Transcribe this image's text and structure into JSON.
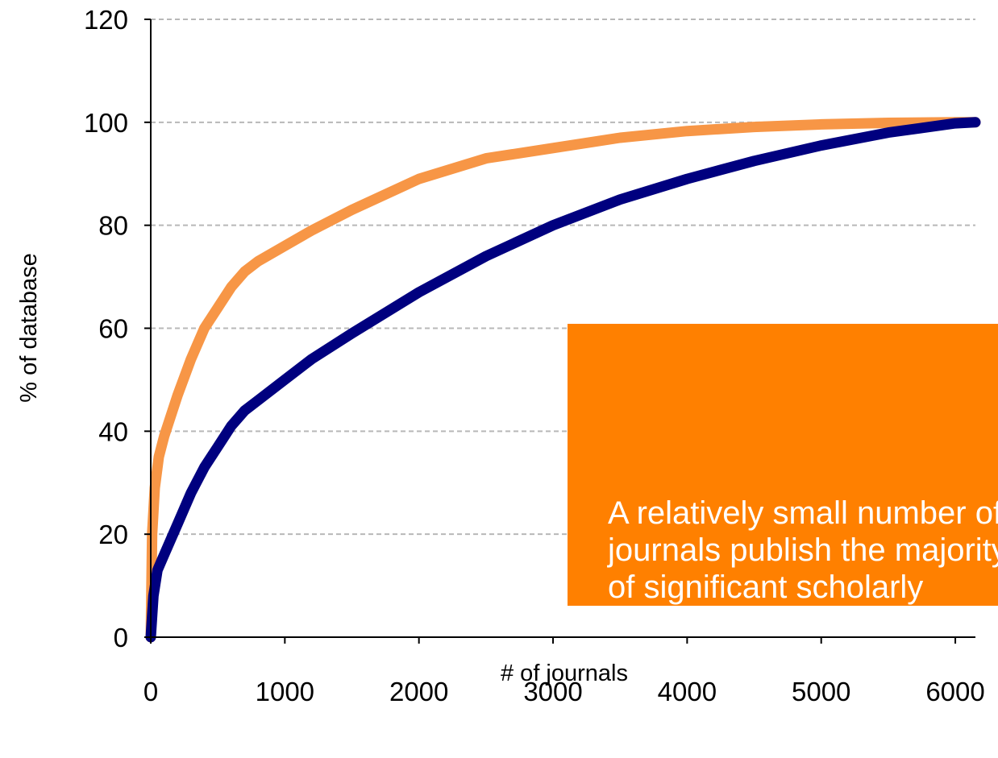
{
  "chart_data": {
    "type": "line",
    "title": "",
    "xlabel": "# of journals",
    "ylabel": "% of database",
    "xlim": [
      0,
      6150
    ],
    "ylim": [
      0,
      120
    ],
    "x_ticks": [
      "0",
      "1000",
      "2000",
      "3000",
      "4000",
      "5000",
      "6000"
    ],
    "y_ticks": [
      "0",
      "20",
      "40",
      "60",
      "80",
      "100",
      "120"
    ],
    "grid": "horizontal dashed",
    "legend": "none",
    "series": [
      {
        "color": "#f79646",
        "x": [
          0,
          10,
          30,
          60,
          100,
          200,
          300,
          400,
          500,
          600,
          700,
          800,
          1000,
          1200,
          1500,
          2000,
          2500,
          3000,
          3500,
          4000,
          4500,
          5000,
          5500,
          6000,
          6150
        ],
        "y": [
          0,
          20,
          29,
          35,
          39,
          47,
          54,
          60,
          64,
          68,
          71,
          73,
          76,
          79,
          83,
          89,
          93,
          95,
          97,
          98.3,
          99.1,
          99.6,
          99.9,
          100,
          100
        ]
      },
      {
        "color": "#00007f",
        "x": [
          0,
          20,
          50,
          100,
          200,
          300,
          400,
          500,
          600,
          700,
          800,
          1000,
          1200,
          1500,
          2000,
          2500,
          3000,
          3500,
          4000,
          4500,
          5000,
          5500,
          6000,
          6150
        ],
        "y": [
          0,
          8,
          13,
          16,
          22,
          28,
          33,
          37,
          41,
          44,
          46,
          50,
          54,
          59,
          67,
          74,
          80,
          85,
          89,
          92.5,
          95.5,
          98,
          99.8,
          100
        ]
      }
    ],
    "annotation": "A relatively small number of\njournals publish the majority\nof significant scholarly\nresults",
    "annotation_color": "#ff8000"
  }
}
